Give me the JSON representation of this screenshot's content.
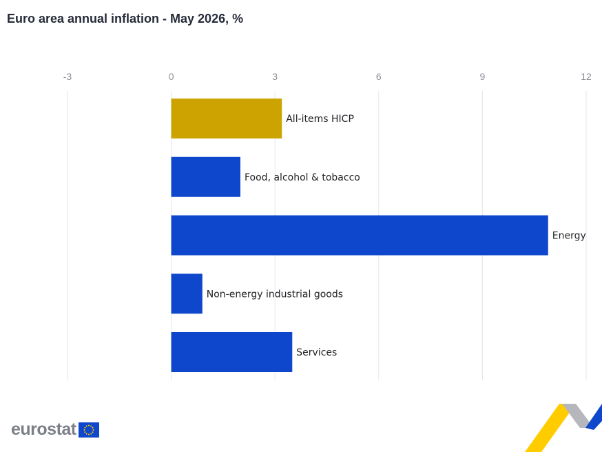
{
  "chart_data": {
    "type": "bar",
    "orientation": "horizontal",
    "title": "Euro area annual inflation - May 2026, %",
    "xlabel": "",
    "ylabel": "",
    "xlim": [
      -3,
      12
    ],
    "ticks": [
      -3,
      0,
      3,
      6,
      9,
      12
    ],
    "grid": true,
    "categories": [
      "All-items HICP",
      "Food, alcohol & tobacco",
      "Energy",
      "Non-energy industrial goods",
      "Services"
    ],
    "values": [
      3.2,
      2.0,
      10.9,
      0.9,
      3.5
    ],
    "colors": [
      "#cca300",
      "#0e47cb",
      "#0e47cb",
      "#0e47cb",
      "#0e47cb"
    ]
  },
  "logo": {
    "text": "eurostat"
  },
  "colors": {
    "highlight": "#cca300",
    "bar": "#0e47cb",
    "grid": "#e4e6ea",
    "flag_blue": "#0e47cb",
    "flag_stars": "#ffcc00"
  }
}
